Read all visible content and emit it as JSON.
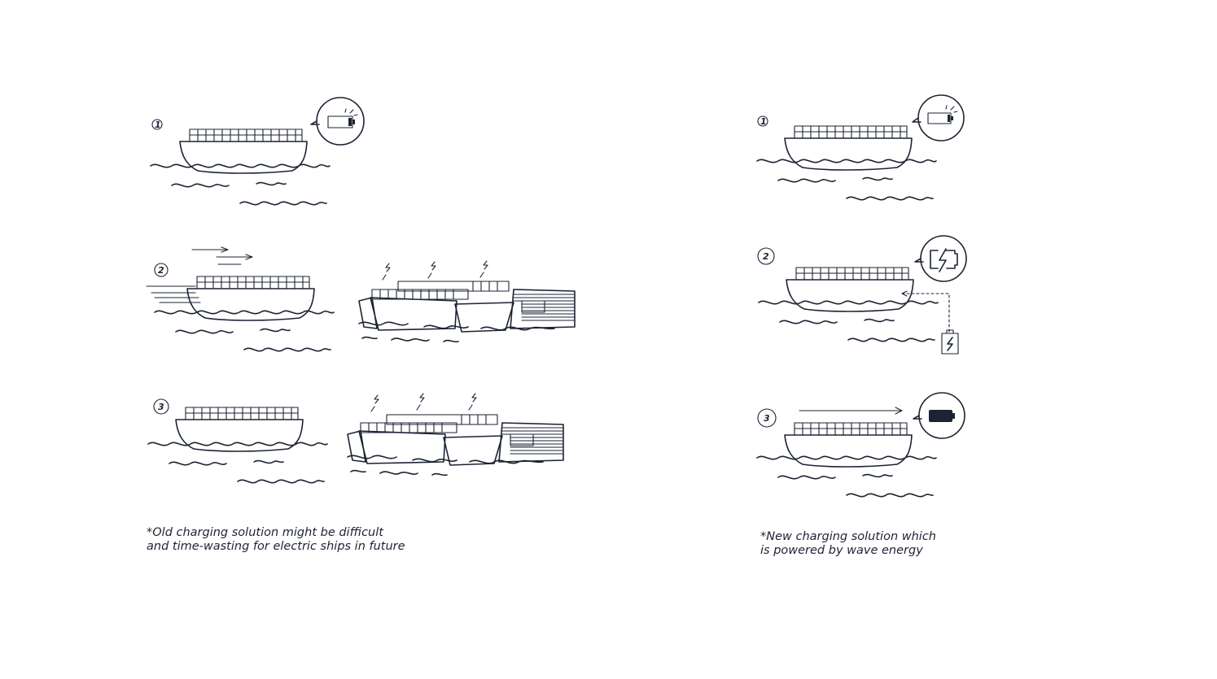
{
  "panels": {
    "old": {
      "steps": [
        "1",
        "2",
        "3"
      ],
      "caption_line1": "*Old charging solution might be difficult",
      "caption_line2": "and time-wasting for electric ships in future"
    },
    "new": {
      "steps": [
        "1",
        "2",
        "3"
      ],
      "caption_line1": "*New charging solution which",
      "caption_line2": "is powered by wave energy"
    }
  },
  "icons": {
    "battery_low": "battery-low-icon",
    "battery_charging": "battery-charging-icon",
    "battery_full": "battery-full-icon",
    "lightning": "lightning-icon",
    "wave_generator": "wave-generator-icon"
  },
  "colors": {
    "ink": "#1c2333",
    "background": "#ffffff"
  }
}
